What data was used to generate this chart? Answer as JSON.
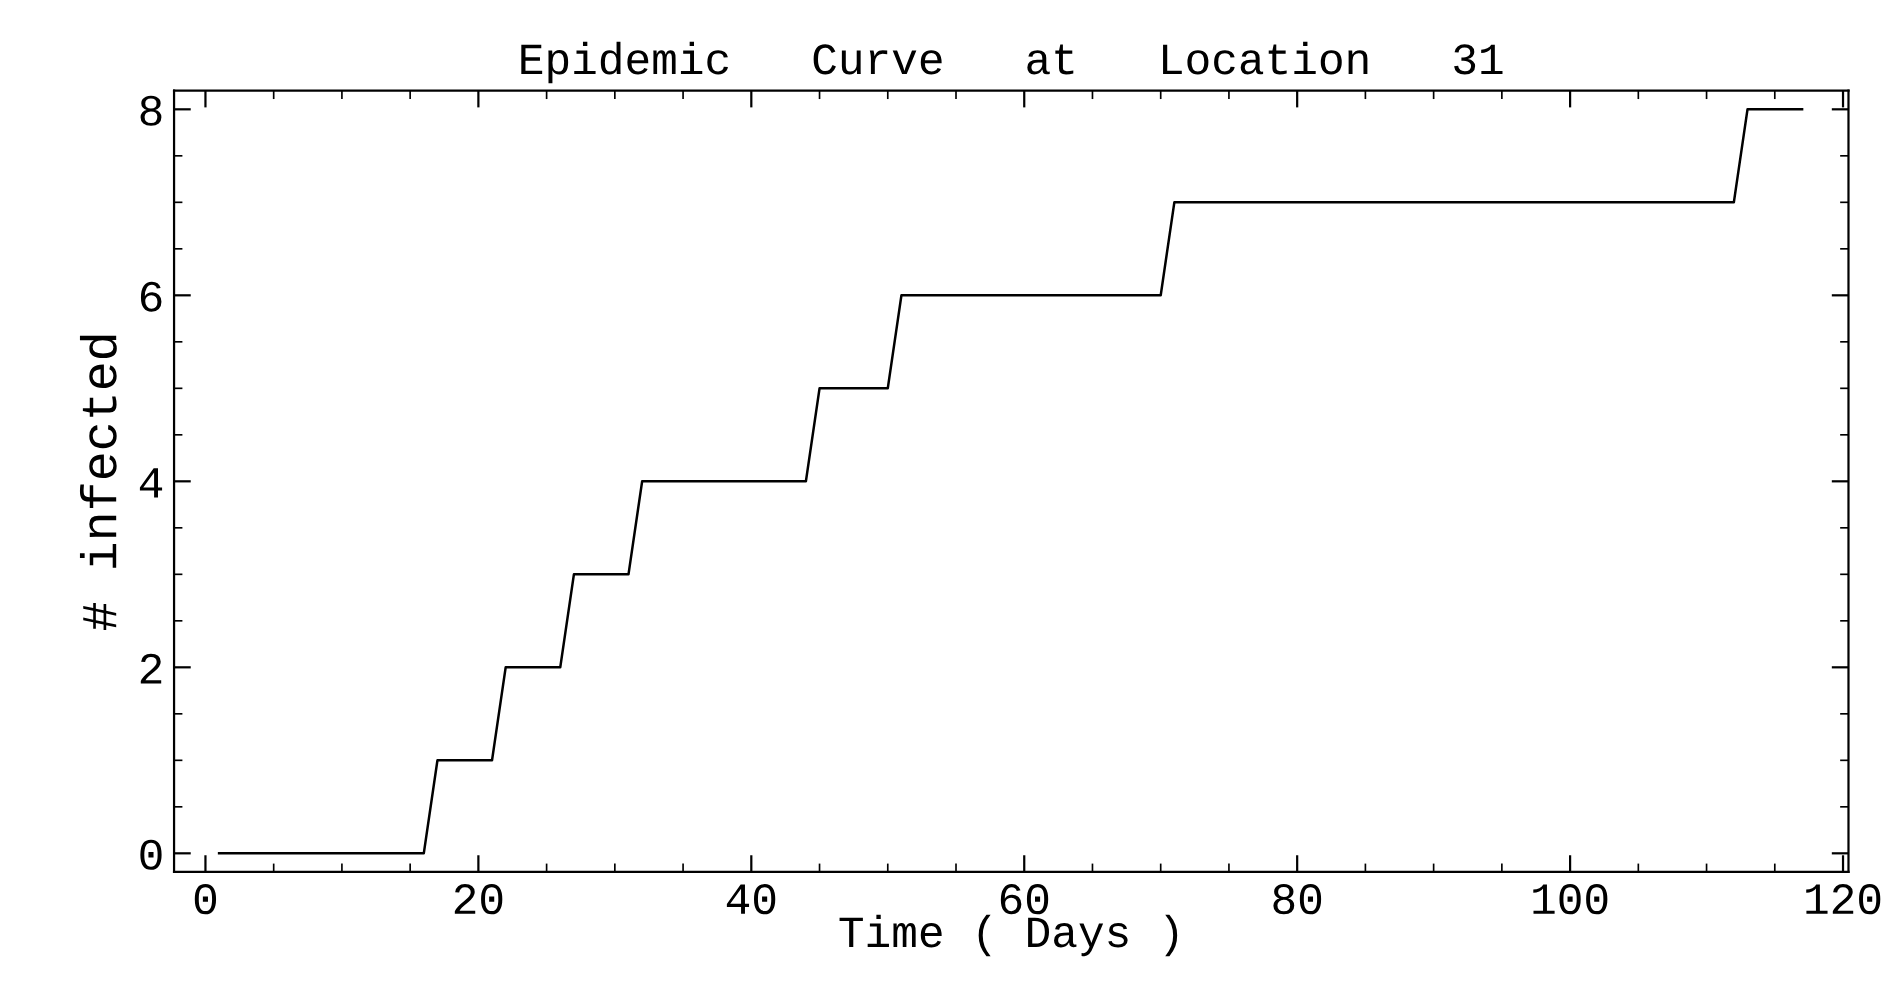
{
  "chart_data": {
    "type": "line",
    "title": "Epidemic   Curve   at   Location   31",
    "xlabel": "Time ( Days )",
    "ylabel": "# infected",
    "x": [
      1,
      16,
      17,
      21,
      22,
      26,
      27,
      31,
      32,
      44,
      45,
      50,
      51,
      70,
      71,
      112,
      113,
      117
    ],
    "values": [
      0,
      0,
      1,
      1,
      2,
      2,
      3,
      3,
      4,
      4,
      5,
      5,
      6,
      6,
      7,
      7,
      8,
      8
    ],
    "color": "#000000",
    "xlim": [
      -2.3,
      120.4
    ],
    "ylim": [
      -0.2,
      8.2
    ],
    "xticks": [
      0,
      20,
      40,
      60,
      80,
      100,
      120
    ],
    "yticks": [
      0,
      2,
      4,
      6,
      8
    ],
    "grid": false,
    "legend": false,
    "marker": "none",
    "line_style": "solid"
  }
}
